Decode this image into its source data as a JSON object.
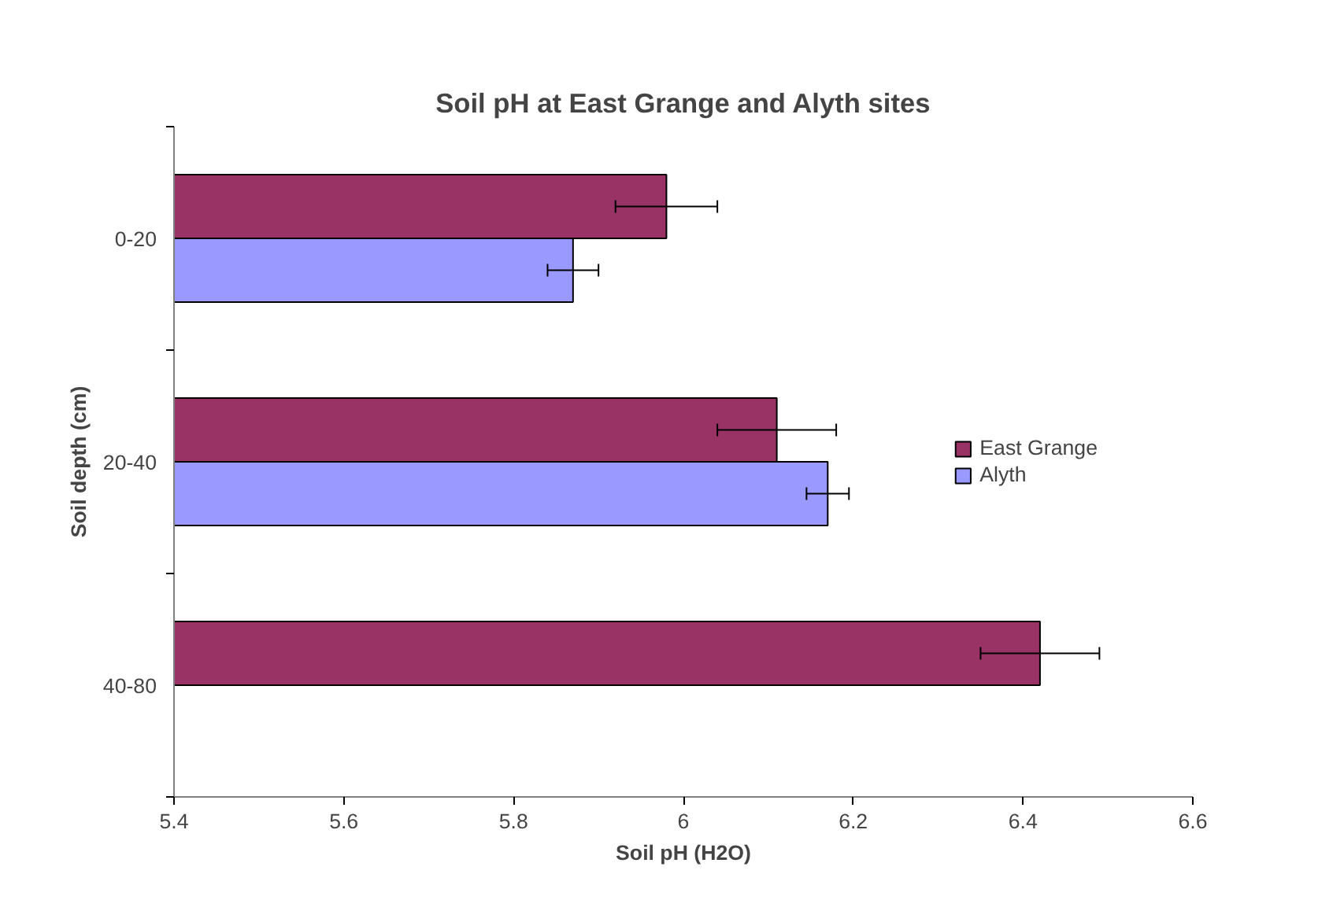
{
  "chart_data": {
    "type": "bar",
    "orientation": "horizontal",
    "title": "Soil pH at East Grange and Alyth sites",
    "xlabel": "Soil pH (H2O)",
    "ylabel": "Soil depth (cm)",
    "categories": [
      "0-20",
      "20-40",
      "40-80"
    ],
    "series": [
      {
        "name": "East Grange",
        "color": "#993366",
        "values": [
          5.98,
          6.11,
          6.42
        ],
        "errors": [
          0.06,
          0.07,
          0.07
        ]
      },
      {
        "name": "Alyth",
        "color": "#9999ff",
        "values": [
          5.87,
          6.17,
          null
        ],
        "errors": [
          0.03,
          0.025,
          null
        ]
      }
    ],
    "xlim": [
      5.4,
      6.6
    ],
    "xticks": [
      5.4,
      5.6,
      5.8,
      6,
      6.2,
      6.4,
      6.6
    ],
    "grid": false,
    "legend": "right"
  }
}
